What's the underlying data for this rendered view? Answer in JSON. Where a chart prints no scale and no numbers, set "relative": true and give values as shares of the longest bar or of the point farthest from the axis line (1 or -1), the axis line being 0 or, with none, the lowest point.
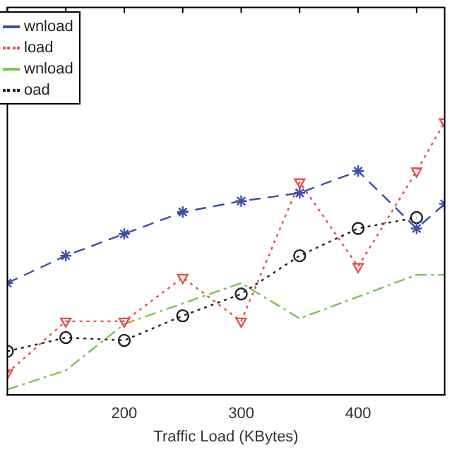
{
  "chart_data": {
    "type": "line",
    "xlabel": "Traffic Load (KBytes)",
    "relative": true,
    "xlim": [
      100,
      474
    ],
    "xticks": [
      200,
      300,
      400
    ],
    "legend": "top left",
    "grid": false,
    "series": [
      {
        "name": "wnload",
        "color": "#3a4fa8",
        "line_style": "dashed",
        "marker": "cross",
        "x": [
          100,
          150,
          200,
          250,
          300,
          350,
          400,
          450,
          474
        ],
        "values": [
          0.41,
          0.51,
          0.59,
          0.67,
          0.71,
          0.74,
          0.82,
          0.61,
          0.7
        ]
      },
      {
        "name": "load",
        "color": "#e8504a",
        "line_style": "dotted",
        "marker": "triangle",
        "x": [
          100,
          150,
          200,
          250,
          300,
          350,
          400,
          450,
          474
        ],
        "values": [
          0.08,
          0.27,
          0.27,
          0.43,
          0.27,
          0.78,
          0.47,
          0.82,
          1
        ]
      },
      {
        "name": "wnload",
        "color": "#7cc44e",
        "line_style": "dashdot",
        "marker": "none",
        "x": [
          100,
          150,
          200,
          300,
          350,
          450,
          474
        ],
        "values": [
          0.02,
          0.09,
          0.26,
          0.41,
          0.28,
          0.44,
          0.44
        ]
      },
      {
        "name": "oad",
        "color": "#222222",
        "line_style": "dotted",
        "marker": "circle",
        "x": [
          100,
          150,
          200,
          250,
          300,
          350,
          400,
          450
        ],
        "values": [
          0.16,
          0.21,
          0.2,
          0.29,
          0.37,
          0.51,
          0.61,
          0.65
        ]
      }
    ]
  }
}
